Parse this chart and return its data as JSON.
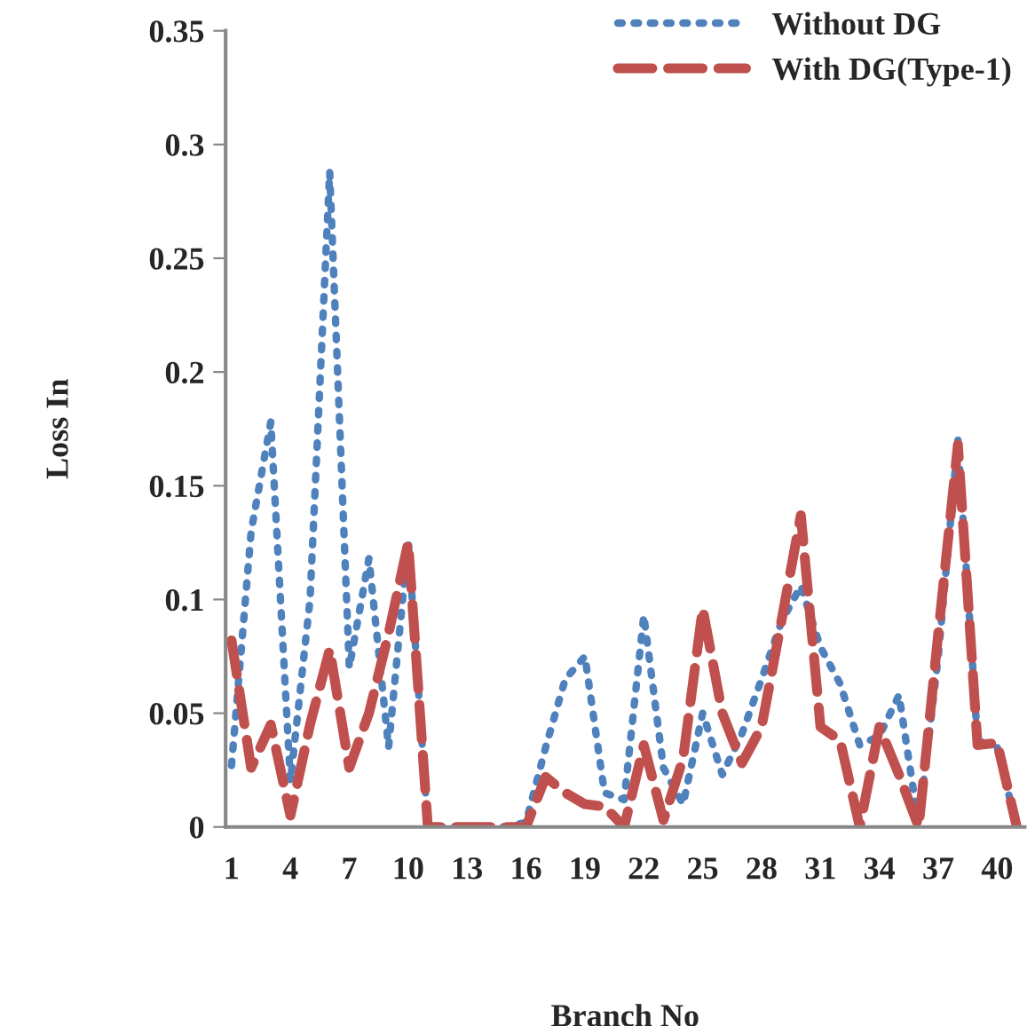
{
  "chart_data": {
    "type": "line",
    "xlabel": "Branch No",
    "ylabel": "Loss In",
    "categories": [
      "1",
      null,
      null,
      "4",
      null,
      null,
      "7",
      null,
      null,
      "10",
      null,
      null,
      "13",
      null,
      null,
      "16",
      null,
      null,
      "19",
      null,
      null,
      "22",
      null,
      null,
      "25",
      null,
      null,
      "28",
      null,
      null,
      "31",
      null,
      null,
      "34",
      null,
      null,
      "37",
      null,
      null,
      "40",
      null
    ],
    "series": [
      {
        "name": "Without DG",
        "color": "#4f81bd",
        "line_style": "dotted",
        "values": [
          0.027,
          0.13,
          0.178,
          0.02,
          0.1,
          0.288,
          0.07,
          0.118,
          0.035,
          0.126,
          0,
          0,
          0,
          0,
          0,
          0.002,
          0.035,
          0.065,
          0.075,
          0.015,
          0.012,
          0.093,
          0.026,
          0.01,
          0.05,
          0.023,
          0.041,
          0.065,
          0.09,
          0.106,
          0.079,
          0.063,
          0.036,
          0.04,
          0.058,
          0.001,
          0.075,
          0.17,
          0.038,
          0.035,
          0
        ]
      },
      {
        "name": "With DG(Type-1)",
        "color": "#c0504d",
        "line_style": "dashed",
        "values": [
          0.082,
          0.026,
          0.045,
          0.005,
          0.045,
          0.078,
          0.026,
          0.05,
          0.085,
          0.125,
          0,
          0,
          0,
          0,
          0,
          0,
          0.022,
          0.015,
          0.01,
          0.009,
          0,
          0.036,
          0.003,
          0.03,
          0.096,
          0.05,
          0.028,
          0.044,
          0.09,
          0.137,
          0.044,
          0.038,
          0,
          0.044,
          0.023,
          0,
          0.085,
          0.168,
          0.036,
          0.037,
          0
        ]
      }
    ],
    "ylim": [
      0,
      0.35
    ],
    "yticks": [
      {
        "value": 0,
        "label": "0"
      },
      0.05,
      {
        "value": 0.1,
        "label": "0.1"
      },
      0.15,
      {
        "value": 0.2,
        "label": "0.2"
      },
      0.25,
      {
        "value": 0.3,
        "label": "0.3"
      },
      0.35
    ],
    "grid": false,
    "legend": "top right",
    "marker": "none"
  }
}
